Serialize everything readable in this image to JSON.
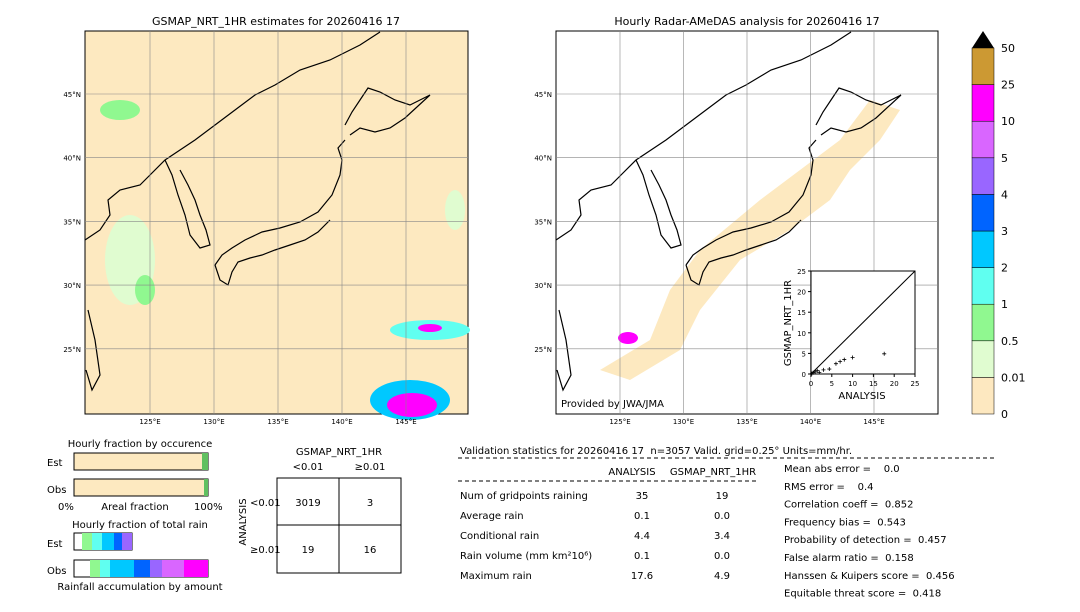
{
  "left_map": {
    "title": "GSMAP_NRT_1HR estimates for 20260416 17",
    "lat_labels": [
      "45°N",
      "40°N",
      "35°N",
      "30°N",
      "25°N"
    ],
    "lon_labels": [
      "125°E",
      "130°E",
      "135°E",
      "140°E",
      "145°E"
    ]
  },
  "right_map": {
    "title": "Hourly Radar-AMeDAS analysis for 20260416 17",
    "lat_labels": [
      "45°N",
      "40°N",
      "35°N",
      "30°N",
      "25°N"
    ],
    "lon_labels": [
      "125°E",
      "130°E",
      "135°E",
      "140°E",
      "145°E"
    ],
    "credit": "Provided by JWA/JMA"
  },
  "colorbar": {
    "labels": [
      "0",
      "0.01",
      "0.5",
      "1",
      "2",
      "3",
      "4",
      "5",
      "10",
      "25",
      "50"
    ],
    "colors": [
      "#fde8c0",
      "#e0fcd0",
      "#90f890",
      "#60fff0",
      "#00c8ff",
      "#0064ff",
      "#9966ff",
      "#d966ff",
      "#ff00ff",
      "#cc9933"
    ],
    "extend_color": "#000000"
  },
  "scatter": {
    "type": "scatter",
    "xlabel": "ANALYSIS",
    "ylabel": "GSMAP_NRT_1HR",
    "x": [
      0.2,
      0.5,
      1,
      1.5,
      2,
      3,
      4.4,
      6,
      7,
      8,
      10,
      17.6
    ],
    "y": [
      0.1,
      0.3,
      0.5,
      0.8,
      0.4,
      1,
      1.2,
      2.5,
      3,
      3.5,
      4,
      4.9
    ],
    "xlim": [
      0,
      25
    ],
    "ylim": [
      0,
      25
    ],
    "xticks": [
      0,
      5,
      10,
      15,
      20,
      25
    ],
    "yticks": [
      0,
      5,
      10,
      15,
      20,
      25
    ]
  },
  "occurrence": {
    "title": "Hourly fraction by occurence",
    "rows": [
      "Est",
      "Obs"
    ],
    "axis_left": "0%",
    "axis_label": "Areal fraction",
    "axis_right": "100%"
  },
  "total_rain": {
    "title": "Hourly fraction of total rain",
    "rows": [
      "Est",
      "Obs"
    ],
    "footer": "Rainfall accumulation by amount"
  },
  "contingency": {
    "title": "GSMAP_NRT_1HR",
    "columns": [
      "<0.01",
      "≥0.01"
    ],
    "side": "ANALYSIS",
    "rows": [
      "<0.01",
      "≥0.01"
    ],
    "cells": [
      [
        "3019",
        "3"
      ],
      [
        "19",
        "16"
      ]
    ]
  },
  "validation": {
    "header": "Validation statistics for 20260416 17  n=3057 Valid. grid=0.25° Units=mm/hr.",
    "columns": [
      "ANALYSIS",
      "GSMAP_NRT_1HR"
    ],
    "rows": [
      [
        "Num of gridpoints raining",
        "35",
        "19"
      ],
      [
        "Average rain",
        "0.1",
        "0.0"
      ],
      [
        "Conditional rain",
        "4.4",
        "3.4"
      ],
      [
        "Rain volume (mm km²10⁶)",
        "0.1",
        "0.0"
      ],
      [
        "Maximum rain",
        "17.6",
        "4.9"
      ]
    ],
    "scores": [
      "Mean abs error =    0.0",
      "RMS error =    0.4",
      "Correlation coeff =  0.852",
      "Frequency bias =  0.543",
      "Probability of detection =  0.457",
      "False alarm ratio =  0.158",
      "Hanssen & Kuipers score =  0.456",
      "Equitable threat score =  0.418"
    ]
  }
}
